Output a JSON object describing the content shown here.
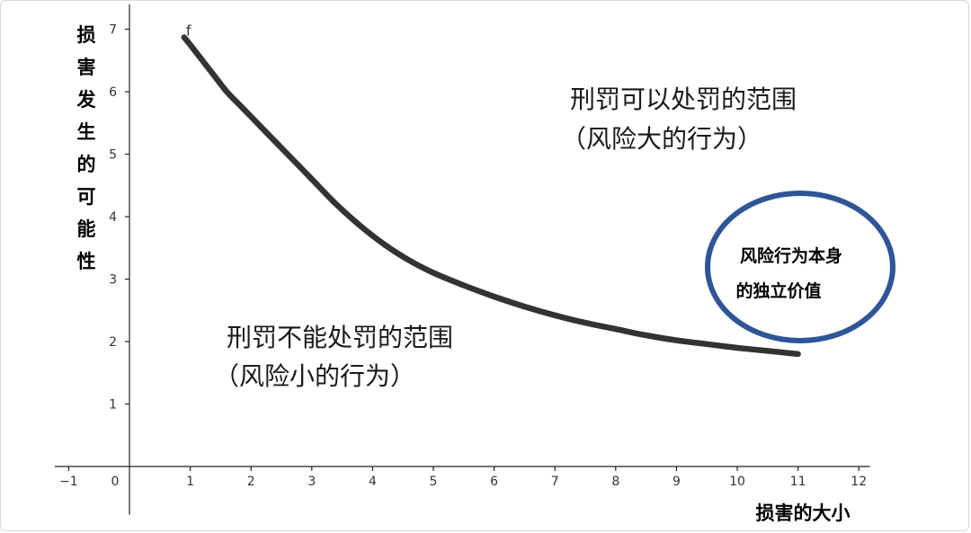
{
  "chart_data": {
    "type": "line",
    "xlabel": "损害的大小",
    "ylabel": "损害发生的可能性",
    "xlim": [
      -1.2,
      12.3
    ],
    "ylim": [
      -0.8,
      7.4
    ],
    "x_ticks": [
      -1,
      0,
      1,
      2,
      3,
      4,
      5,
      6,
      7,
      8,
      9,
      10,
      11,
      12
    ],
    "y_ticks": [
      1,
      2,
      3,
      4,
      5,
      6,
      7
    ],
    "grid": false,
    "series": [
      {
        "name": "f",
        "color": "#333333",
        "x": [
          0.9,
          1.0,
          1.2,
          1.4,
          1.6,
          1.8,
          2.0,
          2.3,
          2.6,
          3.0,
          3.4,
          3.8,
          4.2,
          4.6,
          5.0,
          5.5,
          6.0,
          6.5,
          7.0,
          7.5,
          8.0,
          8.5,
          9.0,
          9.5,
          10.0,
          10.5,
          11.0
        ],
        "y": [
          6.87,
          6.75,
          6.5,
          6.25,
          6.0,
          5.8,
          5.6,
          5.3,
          5.0,
          4.6,
          4.2,
          3.85,
          3.55,
          3.3,
          3.1,
          2.9,
          2.72,
          2.56,
          2.42,
          2.3,
          2.2,
          2.1,
          2.02,
          1.96,
          1.9,
          1.85,
          1.8
        ]
      }
    ],
    "annotations": {
      "upper_region": [
        "刑罚可以处罚的范围",
        "（风险大的行为）"
      ],
      "lower_region": [
        "刑罚不能处罚的范围",
        "（风险小的行为）"
      ],
      "circle": [
        "风险行为本身",
        "的独立价值"
      ]
    },
    "colors": {
      "curve": "#333333",
      "circle_stroke": "#2f5597"
    }
  }
}
